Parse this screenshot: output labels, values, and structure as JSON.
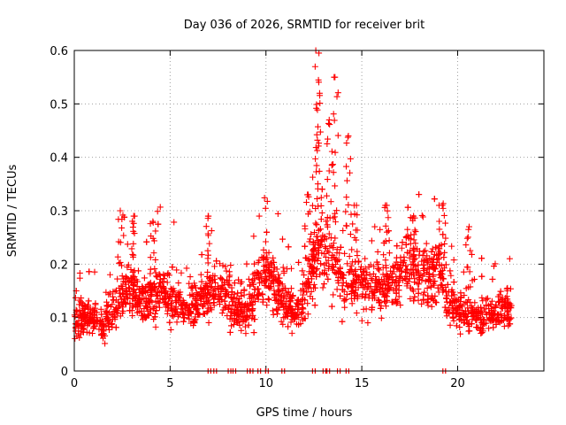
{
  "chart_data": {
    "type": "scatter",
    "title": "Day 036 of 2026, SRMTID for receiver brit",
    "xlabel": "GPS time / hours",
    "ylabel": "SRMTID / TECUs",
    "xlim": [
      0,
      24.5
    ],
    "ylim": [
      0,
      0.6
    ],
    "x_ticks": [
      0,
      5,
      10,
      15,
      20
    ],
    "x_tick_labels": [
      "0",
      "5",
      "10",
      "15",
      "20"
    ],
    "y_ticks": [
      0,
      0.1,
      0.2,
      0.3,
      0.4,
      0.5,
      0.6
    ],
    "y_tick_labels": [
      "0",
      "0.1",
      "0.2",
      "0.3",
      "0.4",
      "0.5",
      "0.6"
    ],
    "grid": true,
    "marker": "+",
    "series_color": "#ff0000",
    "bias_markers_x": [
      7.05,
      7.35,
      8.1,
      8.35,
      9.1,
      9.25,
      9.65,
      10.05,
      10.9,
      12.5,
      13.05,
      13.25,
      13.8,
      14.25,
      19.3
    ],
    "series": [
      {
        "name": "SRMTID",
        "envelope_x": [
          0,
          0.5,
          1,
          1.5,
          2,
          2.5,
          3,
          3.5,
          4,
          4.5,
          5,
          5.5,
          6,
          6.5,
          7,
          7.5,
          8,
          8.5,
          9,
          9.5,
          10,
          10.5,
          11,
          11.5,
          12,
          12.5,
          12.8,
          13.2,
          13.6,
          14,
          14.4,
          15,
          15.5,
          16,
          16.5,
          17,
          17.5,
          18,
          18.5,
          19,
          19.5,
          20,
          20.5,
          21,
          21.5,
          22,
          22.5,
          22.8
        ],
        "envelope_y": [
          0.09,
          0.1,
          0.1,
          0.09,
          0.11,
          0.14,
          0.15,
          0.14,
          0.14,
          0.15,
          0.13,
          0.13,
          0.12,
          0.13,
          0.15,
          0.15,
          0.14,
          0.12,
          0.11,
          0.16,
          0.19,
          0.16,
          0.12,
          0.11,
          0.14,
          0.2,
          0.24,
          0.22,
          0.2,
          0.18,
          0.16,
          0.17,
          0.16,
          0.15,
          0.16,
          0.19,
          0.2,
          0.18,
          0.17,
          0.19,
          0.13,
          0.12,
          0.1,
          0.1,
          0.1,
          0.11,
          0.12,
          0.1
        ],
        "peaks": [
          {
            "x": 2.4,
            "y": 0.3
          },
          {
            "x": 3.1,
            "y": 0.29
          },
          {
            "x": 4.1,
            "y": 0.28
          },
          {
            "x": 7.0,
            "y": 0.29
          },
          {
            "x": 12.2,
            "y": 0.33
          },
          {
            "x": 12.6,
            "y": 0.6
          },
          {
            "x": 12.8,
            "y": 0.52
          },
          {
            "x": 13.3,
            "y": 0.47
          },
          {
            "x": 13.6,
            "y": 0.55
          },
          {
            "x": 14.3,
            "y": 0.44
          },
          {
            "x": 14.6,
            "y": 0.31
          },
          {
            "x": 16.3,
            "y": 0.31
          },
          {
            "x": 17.7,
            "y": 0.29
          },
          {
            "x": 19.2,
            "y": 0.31
          },
          {
            "x": 20.6,
            "y": 0.27
          }
        ],
        "point_count": 2600
      }
    ]
  }
}
